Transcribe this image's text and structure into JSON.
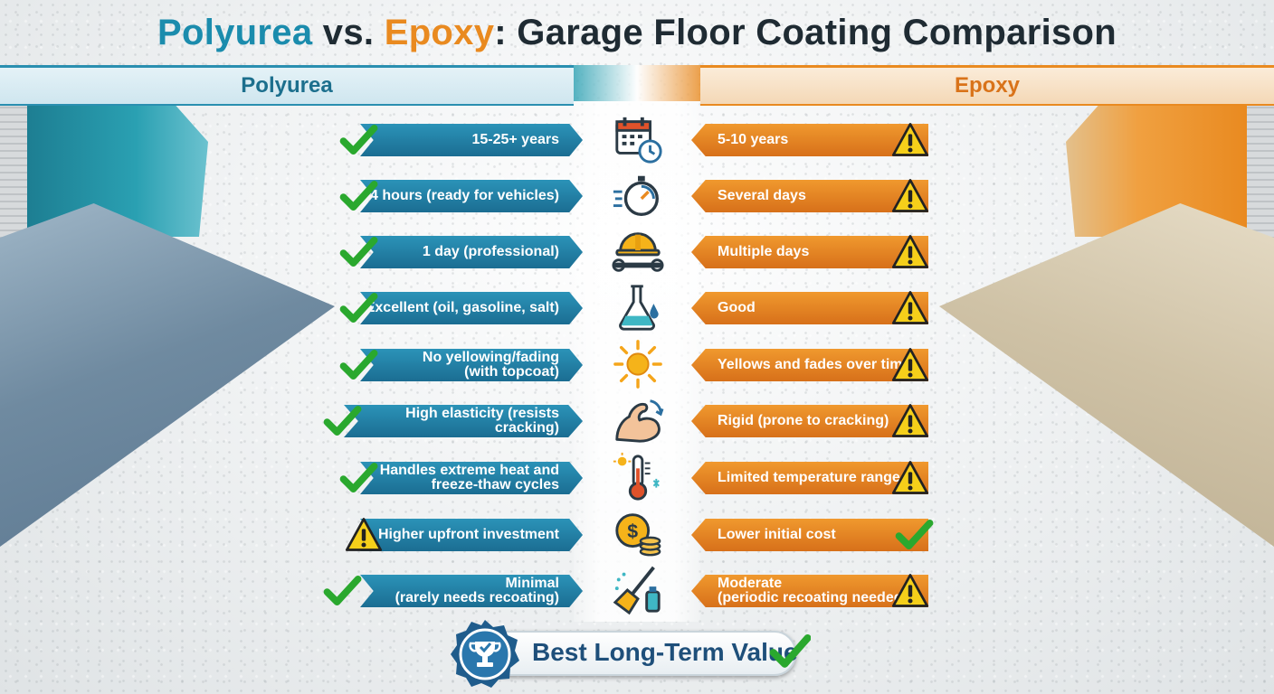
{
  "title": {
    "part1": "Polyurea",
    "part2": " vs. ",
    "part3": "Epoxy",
    "part4": ": Garage Floor Coating Comparison"
  },
  "headers": {
    "left": "Polyurea",
    "right": "Epoxy"
  },
  "colors": {
    "polyurea": "#1b8cad",
    "epoxy": "#e98a20",
    "check": "#2aa82e",
    "warning": "#f5cf1a"
  },
  "rows": [
    {
      "icon": "calendar-clock-icon",
      "polyurea": "15-25+ years",
      "polyurea_mark": "check",
      "epoxy": "5-10 years",
      "epoxy_mark": "warning"
    },
    {
      "icon": "stopwatch-icon",
      "polyurea": "24 hours (ready for vehicles)",
      "polyurea_mark": "check",
      "epoxy": "Several days",
      "epoxy_mark": "warning"
    },
    {
      "icon": "hardhat-wrench-icon",
      "polyurea": "1 day (professional)",
      "polyurea_mark": "check",
      "epoxy": "Multiple days",
      "epoxy_mark": "warning"
    },
    {
      "icon": "flask-icon",
      "polyurea": "Excellent (oil, gasoline, salt)",
      "polyurea_mark": "check",
      "epoxy": "Good",
      "epoxy_mark": "warning"
    },
    {
      "icon": "sun-icon",
      "polyurea": "No yellowing/fading\n(with topcoat)",
      "polyurea_mark": "check",
      "epoxy": "Yellows and fades over time",
      "epoxy_mark": "warning"
    },
    {
      "icon": "flexed-arm-icon",
      "polyurea": "High elasticity (resists cracking)",
      "polyurea_mark": "check",
      "epoxy": "Rigid (prone to cracking)",
      "epoxy_mark": "warning"
    },
    {
      "icon": "thermometer-icon",
      "polyurea": "Handles extreme heat and\nfreeze-thaw cycles",
      "polyurea_mark": "check",
      "epoxy": "Limited temperature range",
      "epoxy_mark": "warning"
    },
    {
      "icon": "dollar-coins-icon",
      "polyurea": "Higher upfront investment",
      "polyurea_mark": "warning",
      "epoxy": "Lower initial cost",
      "epoxy_mark": "check"
    },
    {
      "icon": "cleaning-brush-icon",
      "polyurea": "Minimal\n(rarely needs recoating)",
      "polyurea_mark": "check",
      "epoxy": "Moderate\n(periodic recoating needed)",
      "epoxy_mark": "warning"
    }
  ],
  "badge": {
    "label": "Best Long-Term Value",
    "icon": "trophy-medal-icon"
  }
}
